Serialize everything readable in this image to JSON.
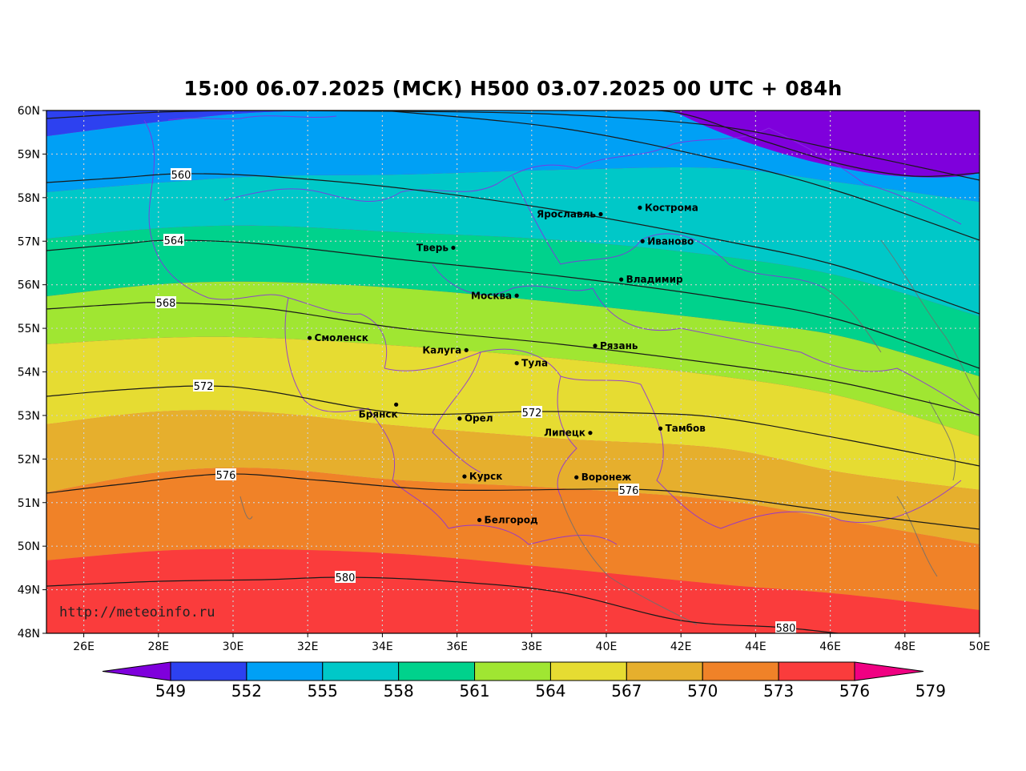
{
  "title": "15:00 06.07.2025 (МСК) H500  03.07.2025 00 UTC + 084h",
  "watermark": "http://meteoinfo.ru",
  "map": {
    "lon_range": [
      25,
      50
    ],
    "lat_range": [
      48,
      60
    ],
    "lat_ticks": [
      "60N",
      "59N",
      "58N",
      "57N",
      "56N",
      "55N",
      "54N",
      "53N",
      "52N",
      "51N",
      "50N",
      "49N",
      "48N"
    ],
    "lon_ticks": [
      "26E",
      "28E",
      "30E",
      "32E",
      "34E",
      "36E",
      "38E",
      "40E",
      "42E",
      "44E",
      "46E",
      "48E",
      "50E"
    ],
    "grid": true,
    "cities": [
      {
        "name": "Кострома",
        "lon": 40.9,
        "lat": 57.77,
        "label_side": "right"
      },
      {
        "name": "Ярославль",
        "lon": 39.85,
        "lat": 57.62,
        "label_side": "left"
      },
      {
        "name": "Иваново",
        "lon": 40.97,
        "lat": 57.0,
        "label_side": "right"
      },
      {
        "name": "Тверь",
        "lon": 35.9,
        "lat": 56.85,
        "label_side": "left"
      },
      {
        "name": "Владимир",
        "lon": 40.4,
        "lat": 56.12,
        "label_side": "right"
      },
      {
        "name": "Москва",
        "lon": 37.6,
        "lat": 55.75,
        "label_side": "left"
      },
      {
        "name": "Смоленск",
        "lon": 32.05,
        "lat": 54.78,
        "label_side": "right"
      },
      {
        "name": "Калуга",
        "lon": 36.25,
        "lat": 54.5,
        "label_side": "left"
      },
      {
        "name": "Рязань",
        "lon": 39.7,
        "lat": 54.6,
        "label_side": "right"
      },
      {
        "name": "Тула",
        "lon": 37.6,
        "lat": 54.2,
        "label_side": "right"
      },
      {
        "name": "Брянск",
        "lon": 34.37,
        "lat": 53.25,
        "label_side": "below-left"
      },
      {
        "name": "Орел",
        "lon": 36.07,
        "lat": 52.93,
        "label_side": "right"
      },
      {
        "name": "Липецк",
        "lon": 39.57,
        "lat": 52.6,
        "label_side": "left"
      },
      {
        "name": "Тамбов",
        "lon": 41.45,
        "lat": 52.7,
        "label_side": "right"
      },
      {
        "name": "Курск",
        "lon": 36.2,
        "lat": 51.6,
        "label_side": "right"
      },
      {
        "name": "Воронеж",
        "lon": 39.2,
        "lat": 51.58,
        "label_side": "right"
      },
      {
        "name": "Белгород",
        "lon": 36.6,
        "lat": 50.6,
        "label_side": "right"
      }
    ],
    "contour_labels": [
      "560",
      "564",
      "568",
      "572",
      "572",
      "576",
      "576",
      "580",
      "580"
    ]
  },
  "colorbar": {
    "colors": [
      "#7f00dc",
      "#2d41f0",
      "#00a0f5",
      "#00c8c8",
      "#00d28c",
      "#a0e632",
      "#e6dc32",
      "#e6af2d",
      "#f08228",
      "#fa3c3c",
      "#f00082"
    ],
    "ticks": [
      "549",
      "552",
      "555",
      "558",
      "561",
      "564",
      "567",
      "570",
      "573",
      "576",
      "579"
    ]
  }
}
